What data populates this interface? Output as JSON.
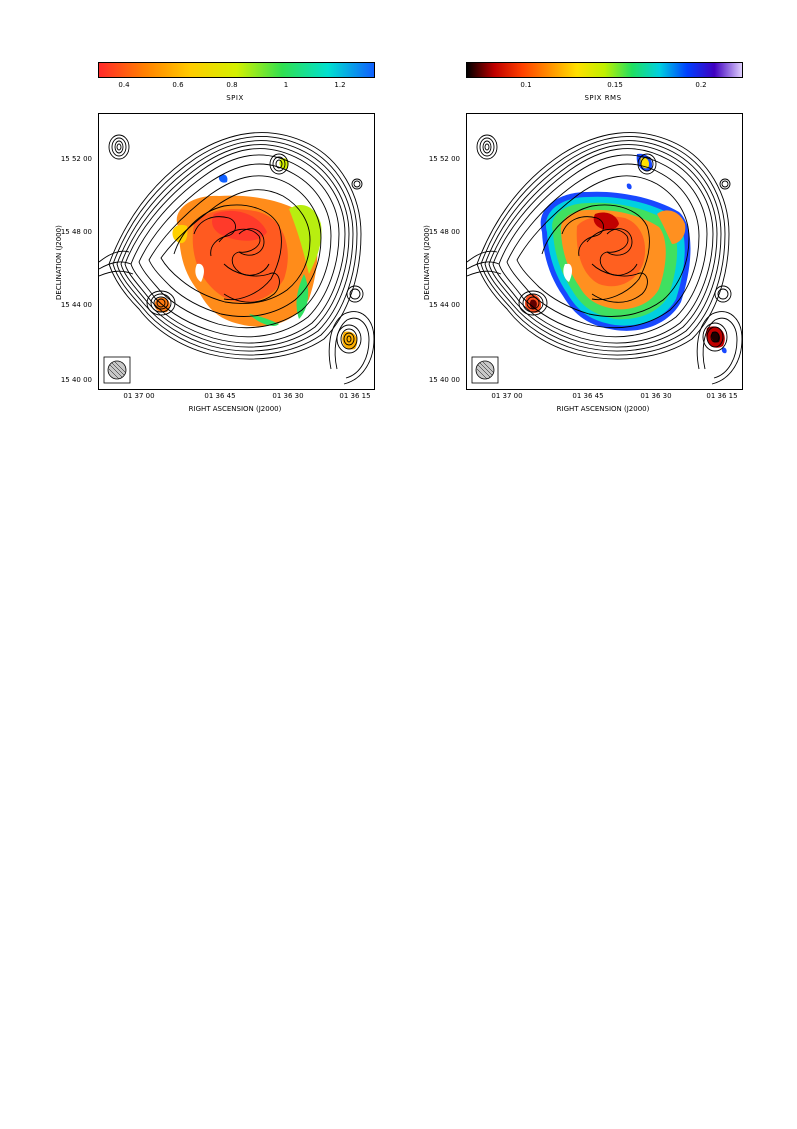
{
  "panels": [
    {
      "colorbar": {
        "title": "SPIX",
        "ticks": [
          "0.4",
          "0.6",
          "0.8",
          "1",
          "1.2"
        ],
        "colors": [
          "#ff2a2a",
          "#ff8000",
          "#ffcc00",
          "#d4f000",
          "#30e050",
          "#00e0d0",
          "#1060ff"
        ]
      },
      "dec_ticks": [
        "15 52 00",
        "15 48 00",
        "15 44 00",
        "15 40 00"
      ],
      "ra_ticks": [
        "01 37 00",
        "01 36 45",
        "01 36 30",
        "01 36 15"
      ],
      "xlabel": "RIGHT ASCENSION  (J2000)",
      "ylabel": "DECLINATION  (J2000)"
    },
    {
      "colorbar": {
        "title": "SPIX RMS",
        "ticks": [
          "0.1",
          "0.15",
          "0.2"
        ],
        "colors": [
          "#000000",
          "#c00000",
          "#ff4000",
          "#ff9000",
          "#ffe000",
          "#c0f000",
          "#20e060",
          "#00d0e0",
          "#0040ff",
          "#4000c0",
          "#e0d0ff"
        ]
      },
      "dec_ticks": [
        "15 52 00",
        "15 48 00",
        "15 44 00",
        "15 40 00"
      ],
      "ra_ticks": [
        "01 37 00",
        "01 36 45",
        "01 36 30",
        "01 36 15"
      ],
      "xlabel": "RIGHT ASCENSION  (J2000)",
      "ylabel": "DECLINATION  (J2000)"
    }
  ]
}
